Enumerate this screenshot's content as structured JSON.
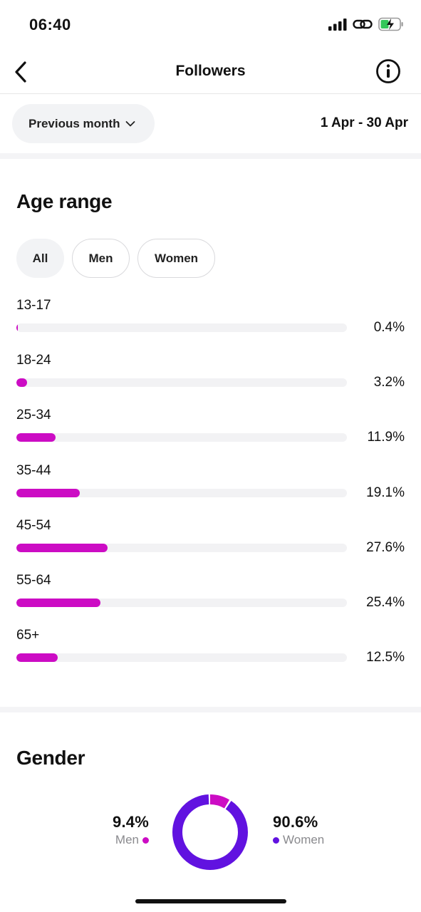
{
  "status_bar": {
    "time": "06:40"
  },
  "header": {
    "title": "Followers"
  },
  "period": {
    "selected": "Previous month",
    "range": "1 Apr - 30 Apr"
  },
  "age_section": {
    "title": "Age range",
    "filters": [
      "All",
      "Men",
      "Women"
    ],
    "active_filter": "All",
    "rows": [
      {
        "label": "13-17",
        "value": "0.4%",
        "percent": 0.4
      },
      {
        "label": "18-24",
        "value": "3.2%",
        "percent": 3.2
      },
      {
        "label": "25-34",
        "value": "11.9%",
        "percent": 11.9
      },
      {
        "label": "35-44",
        "value": "19.1%",
        "percent": 19.1
      },
      {
        "label": "45-54",
        "value": "27.6%",
        "percent": 27.6
      },
      {
        "label": "55-64",
        "value": "25.4%",
        "percent": 25.4
      },
      {
        "label": "65+",
        "value": "12.5%",
        "percent": 12.5
      }
    ],
    "scale_max_percent": 100
  },
  "gender_section": {
    "title": "Gender",
    "men": {
      "label": "Men",
      "value": "9.4%",
      "percent": 9.4,
      "color": "#cc0cc4"
    },
    "women": {
      "label": "Women",
      "value": "90.6%",
      "percent": 90.6,
      "color": "#6112e0"
    }
  },
  "colors": {
    "bar_fill": "#cc0cc4",
    "bar_track": "#f2f2f4",
    "chip_bg": "#f2f3f5"
  },
  "icons": {
    "back": "chevron-left-icon",
    "info": "info-icon",
    "dropdown": "chevron-down-icon"
  }
}
